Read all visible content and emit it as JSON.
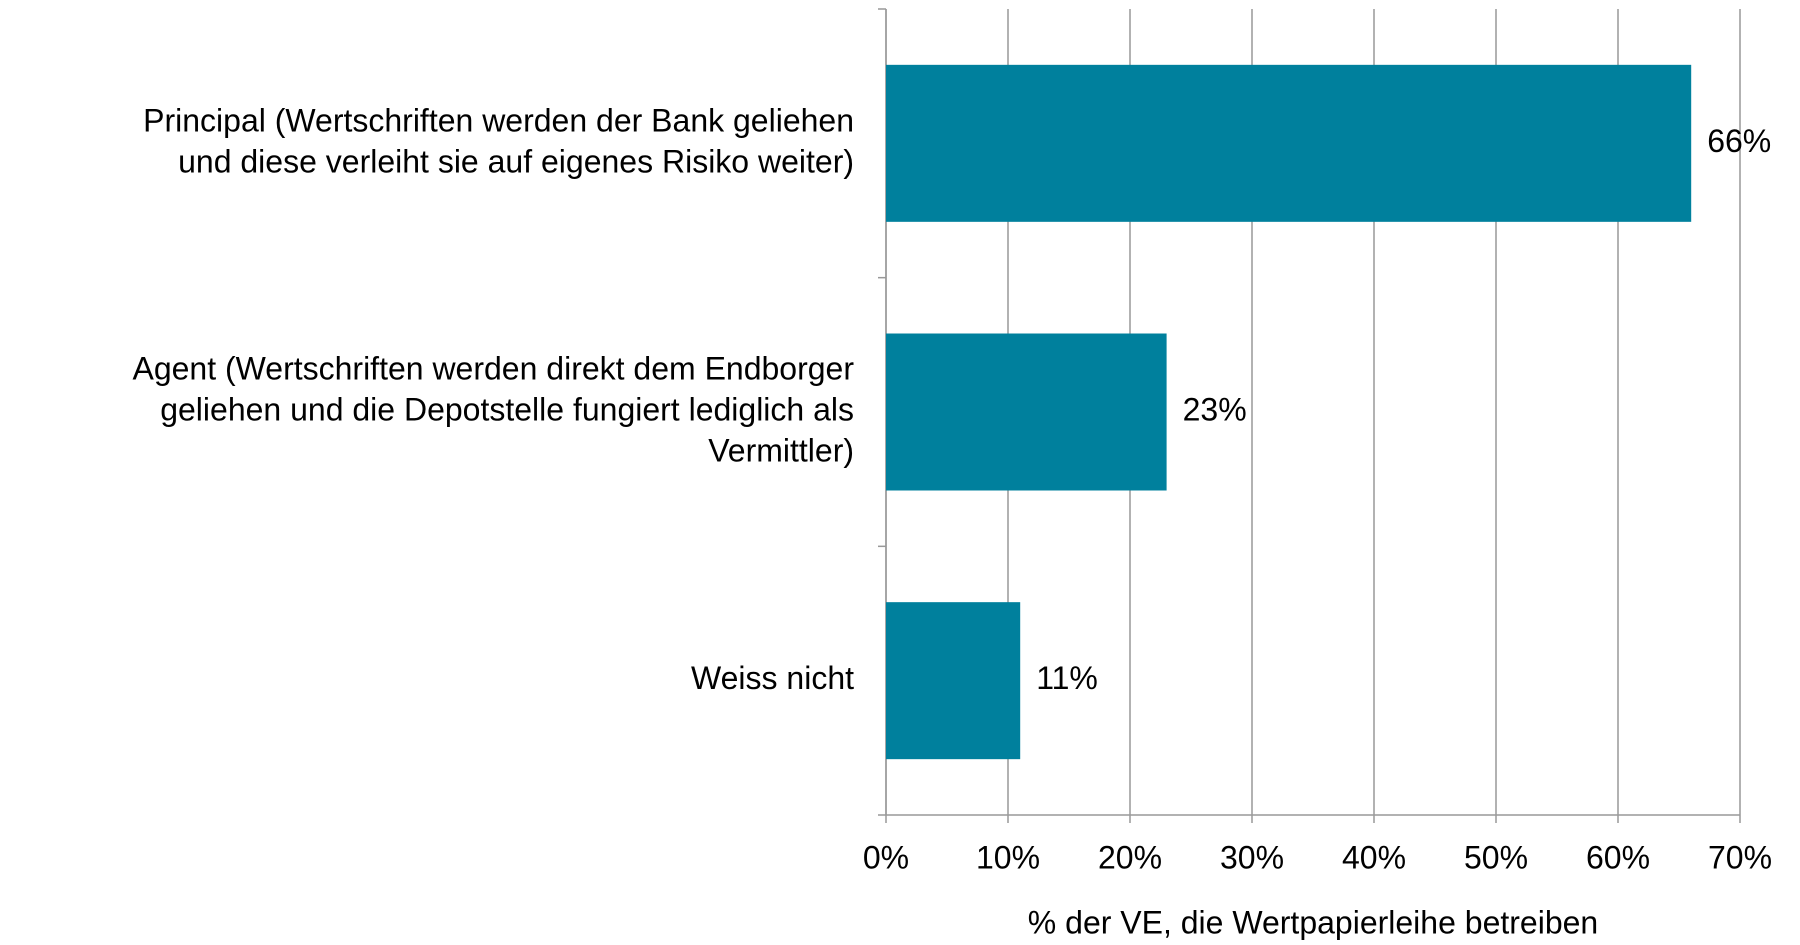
{
  "chart_data": {
    "type": "bar",
    "orientation": "horizontal",
    "categories": [
      [
        "Principal (Wertschriften werden der Bank geliehen",
        "und diese verleiht sie auf eigenes Risiko weiter)"
      ],
      [
        "Agent (Wertschriften werden direkt dem Endborger",
        "geliehen und die Depotstelle fungiert lediglich als",
        "Vermittler)"
      ],
      [
        "Weiss nicht"
      ]
    ],
    "values": [
      66,
      23,
      11
    ],
    "value_labels": [
      "66%",
      "23%",
      "11%"
    ],
    "color": "#00809d",
    "xlim": [
      0,
      70
    ],
    "xticks": [
      {
        "value": 0,
        "label": "0%"
      },
      {
        "value": 10,
        "label": "10%"
      },
      {
        "value": 20,
        "label": "20%"
      },
      {
        "value": 30,
        "label": "30%"
      },
      {
        "value": 40,
        "label": "40%"
      },
      {
        "value": 50,
        "label": "50%"
      },
      {
        "value": 60,
        "label": "60%"
      },
      {
        "value": 70,
        "label": "70%"
      }
    ],
    "xlabel": "% der VE, die Wertpapierleihe betreiben",
    "grid": true
  }
}
